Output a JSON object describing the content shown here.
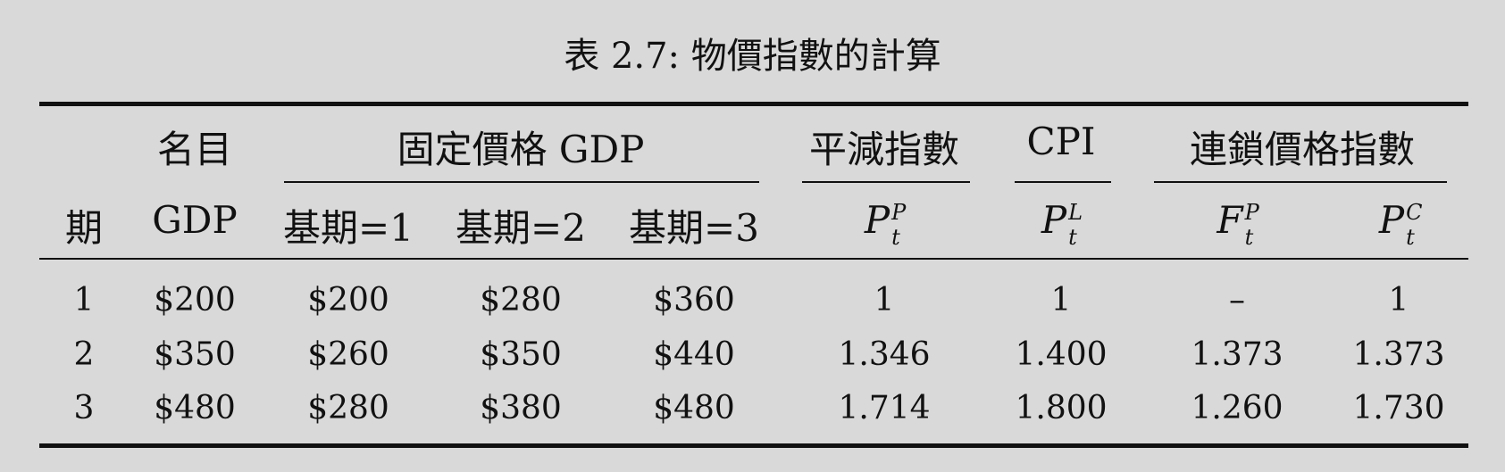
{
  "caption": "表 2.7: 物價指數的計算",
  "header_top": {
    "nominal": "名目",
    "fixed_price_gdp": "固定價格 GDP",
    "deflator": "平減指數",
    "cpi": "CPI",
    "chain": "連鎖價格指數"
  },
  "header_sub": {
    "period": "期",
    "gdp": "GDP",
    "base1": "基期=1",
    "base2": "基期=2",
    "base3": "基期=3",
    "deflator_symbol": {
      "main": "P",
      "sup": "P",
      "sub": "t"
    },
    "cpi_symbol": {
      "main": "P",
      "sup": "L",
      "sub": "t"
    },
    "fisher_symbol": {
      "main": "F",
      "sup": "P",
      "sub": "t"
    },
    "chain_symbol": {
      "main": "P",
      "sup": "C",
      "sub": "t"
    }
  },
  "rows": [
    [
      "1",
      "$200",
      "$200",
      "$280",
      "$360",
      "1",
      "1",
      "–",
      "1"
    ],
    [
      "2",
      "$350",
      "$260",
      "$350",
      "$440",
      "1.346",
      "1.400",
      "1.373",
      "1.373"
    ],
    [
      "3",
      "$480",
      "$280",
      "$380",
      "$480",
      "1.714",
      "1.800",
      "1.260",
      "1.730"
    ]
  ]
}
